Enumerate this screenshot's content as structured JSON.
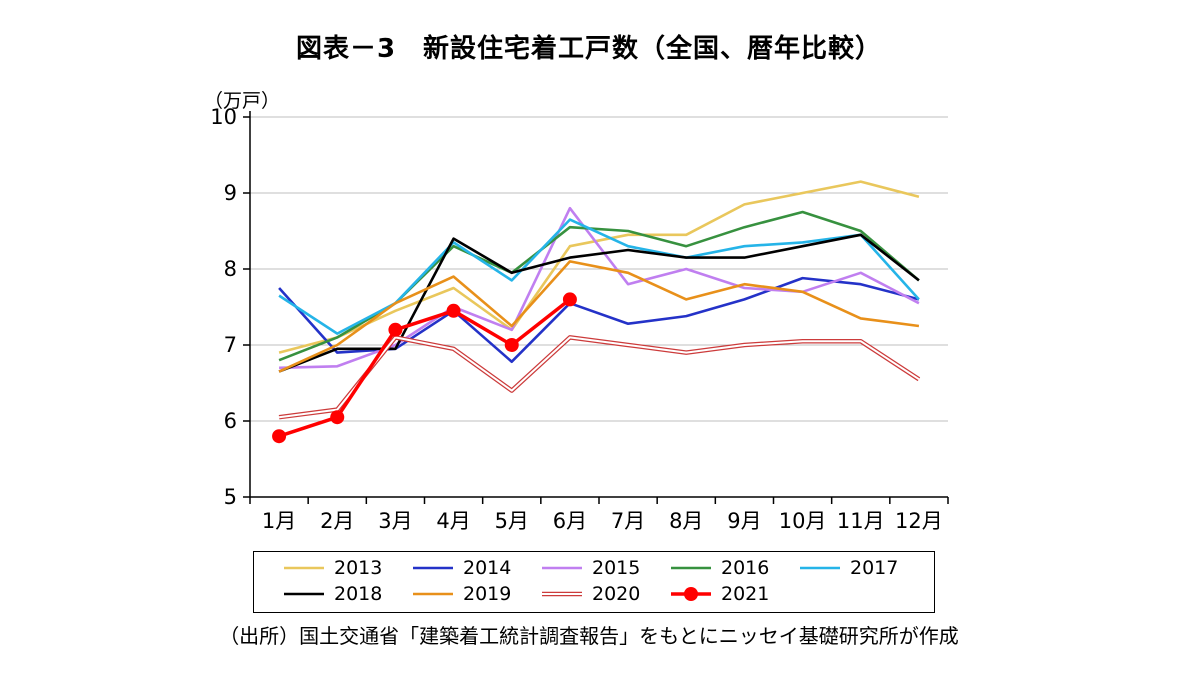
{
  "title": "図表－3　新設住宅着工戸数（全国、暦年比較）",
  "unit_label": "（万戸）",
  "source": "（出所）国土交通省「建築着工統計調査報告」をもとにニッセイ基礎研究所が作成",
  "chart_data": {
    "type": "line",
    "title": "図表－3　新設住宅着工戸数（全国、暦年比較）",
    "xlabel": "",
    "ylabel": "（万戸）",
    "ylim": [
      5,
      10
    ],
    "y_ticks": [
      5,
      6,
      7,
      8,
      9,
      10
    ],
    "grid": true,
    "legend_position": "bottom",
    "categories": [
      "1月",
      "2月",
      "3月",
      "4月",
      "5月",
      "6月",
      "7月",
      "8月",
      "9月",
      "10月",
      "11月",
      "12月"
    ],
    "series": [
      {
        "name": "2013",
        "color": "#E9C75C",
        "style": "plain",
        "values": [
          6.9,
          7.1,
          7.45,
          7.75,
          7.2,
          8.3,
          8.45,
          8.45,
          8.85,
          9.0,
          9.15,
          8.95
        ]
      },
      {
        "name": "2014",
        "color": "#2432C8",
        "style": "plain",
        "values": [
          7.75,
          6.9,
          6.95,
          7.45,
          6.78,
          7.55,
          7.28,
          7.38,
          7.6,
          7.88,
          7.8,
          7.6
        ]
      },
      {
        "name": "2015",
        "color": "#C07FF0",
        "style": "plain",
        "values": [
          6.7,
          6.72,
          7.0,
          7.5,
          7.2,
          8.8,
          7.8,
          8.0,
          7.75,
          7.7,
          7.95,
          7.55
        ]
      },
      {
        "name": "2016",
        "color": "#37913F",
        "style": "plain",
        "values": [
          6.8,
          7.1,
          7.55,
          8.3,
          7.95,
          8.55,
          8.5,
          8.3,
          8.55,
          8.75,
          8.5,
          7.85
        ]
      },
      {
        "name": "2017",
        "color": "#25B4E8",
        "style": "plain",
        "values": [
          7.65,
          7.15,
          7.55,
          8.35,
          7.85,
          8.65,
          8.3,
          8.15,
          8.3,
          8.35,
          8.45,
          7.6
        ]
      },
      {
        "name": "2018",
        "color": "#000000",
        "style": "plain",
        "values": [
          6.65,
          6.95,
          6.95,
          8.4,
          7.95,
          8.15,
          8.25,
          8.15,
          8.15,
          8.3,
          8.45,
          7.85
        ]
      },
      {
        "name": "2019",
        "color": "#E8901A",
        "style": "plain",
        "values": [
          6.65,
          7.0,
          7.55,
          7.9,
          7.25,
          8.1,
          7.95,
          7.6,
          7.8,
          7.7,
          7.35,
          7.25
        ]
      },
      {
        "name": "2020",
        "color": "#CC3B3B",
        "style": "double",
        "values": [
          6.05,
          6.15,
          7.1,
          6.95,
          6.4,
          7.1,
          7.0,
          6.9,
          7.0,
          7.05,
          7.05,
          6.55
        ]
      },
      {
        "name": "2021",
        "color": "#FF0000",
        "style": "marker",
        "values": [
          5.8,
          6.05,
          7.2,
          7.45,
          7.0,
          7.6
        ]
      }
    ]
  }
}
